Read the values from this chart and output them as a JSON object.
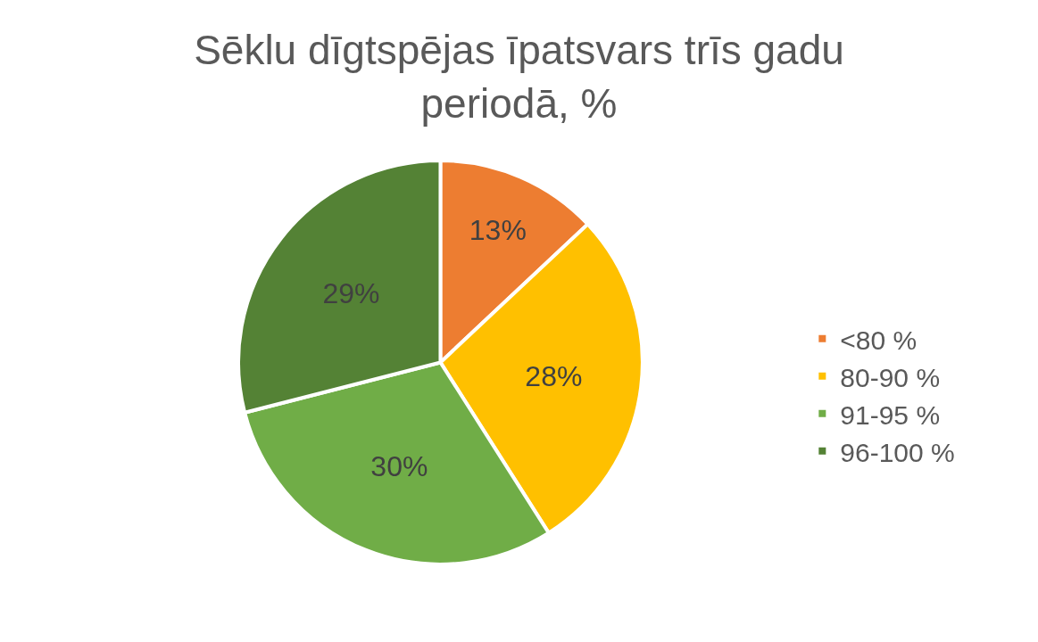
{
  "chart_data": {
    "type": "pie",
    "title": "Sēklu dīgtspējas īpatsvars trīs gadu\nperiodā, %",
    "categories": [
      "<80 %",
      "80-90 %",
      "91-95 %",
      "96-100 %"
    ],
    "values": [
      13,
      28,
      30,
      29
    ],
    "colors": [
      "#ed7d31",
      "#ffc000",
      "#70ad47",
      "#548235"
    ],
    "value_labels": [
      "13%",
      "28%",
      "30%",
      "29%"
    ],
    "legend": "right"
  }
}
